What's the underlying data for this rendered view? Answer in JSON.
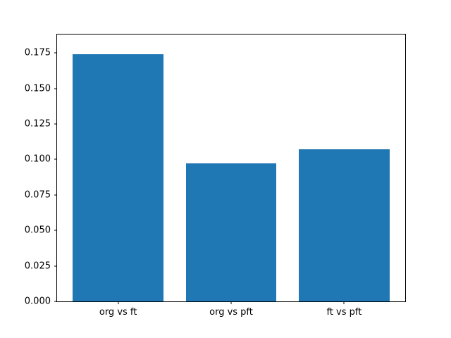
{
  "chart_data": {
    "type": "bar",
    "categories": [
      "org vs ft",
      "org vs pft",
      "ft vs pft"
    ],
    "values": [
      0.174,
      0.097,
      0.107
    ],
    "title": "",
    "xlabel": "",
    "ylabel": "",
    "ylim": [
      0,
      0.188
    ],
    "xlim": [
      -0.54,
      2.54
    ],
    "bar_width": 0.8,
    "yticks": [
      0.0,
      0.025,
      0.05,
      0.075,
      0.1,
      0.125,
      0.15,
      0.175
    ],
    "ytick_labels": [
      "0.000",
      "0.025",
      "0.050",
      "0.075",
      "0.100",
      "0.125",
      "0.150",
      "0.175"
    ],
    "bar_color": "#1f77b4",
    "grid": false,
    "legend_position": "none"
  }
}
